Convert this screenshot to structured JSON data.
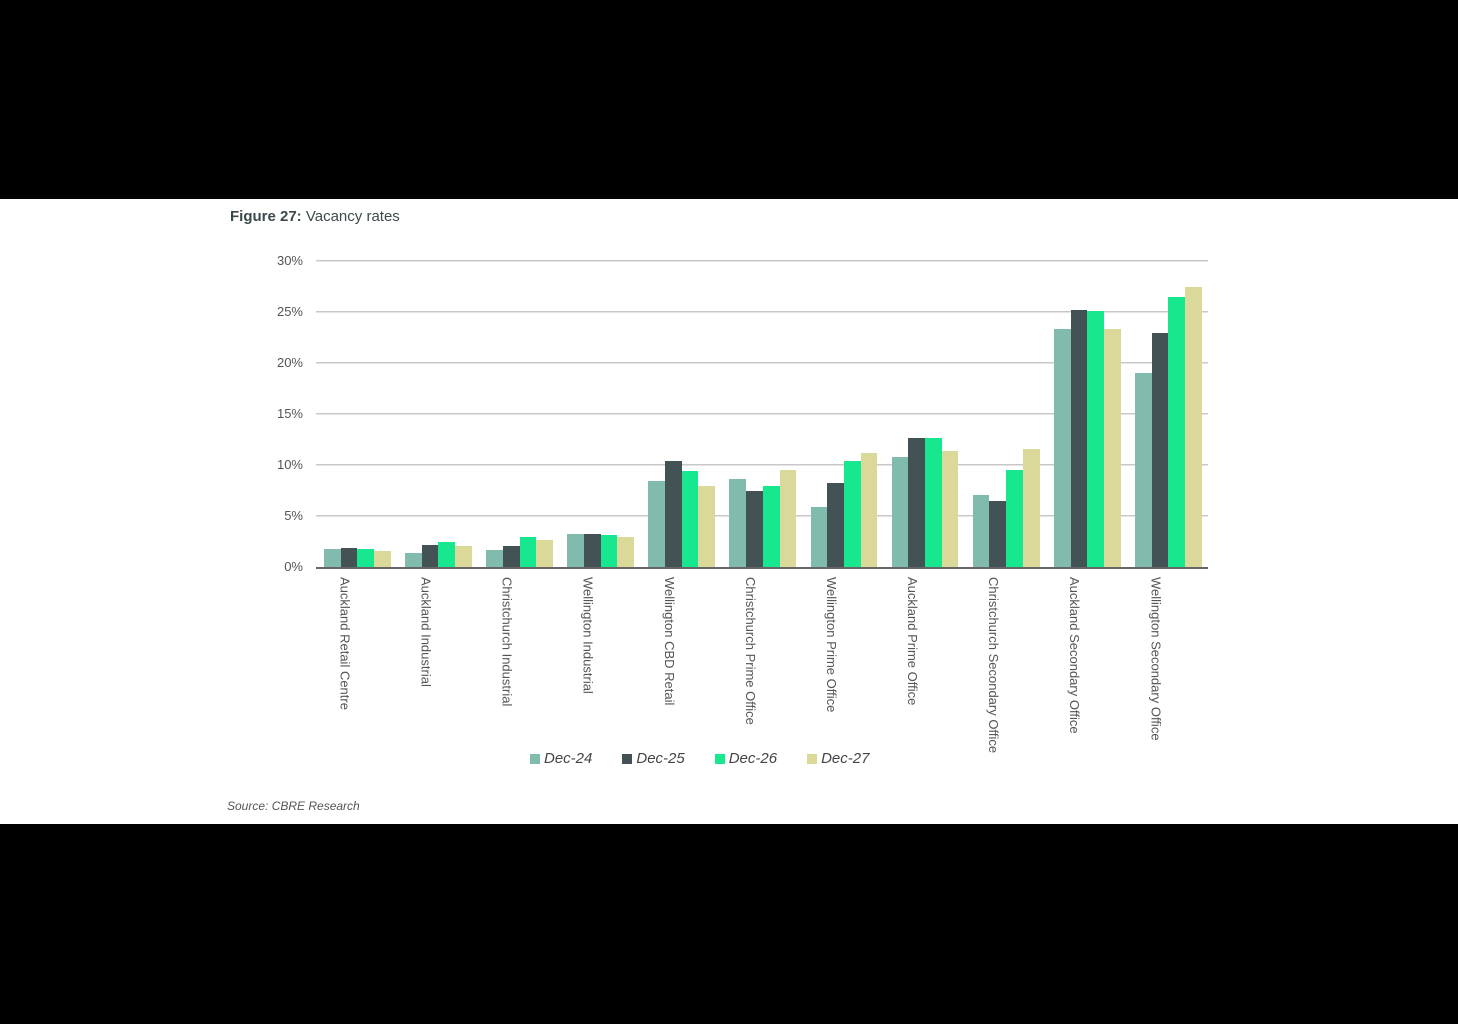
{
  "figure": {
    "label": "Figure 27:",
    "title": "Vacancy rates",
    "source": "Source: CBRE Research"
  },
  "chart_data": {
    "type": "bar",
    "title": "Vacancy rates",
    "xlabel": "",
    "ylabel": "",
    "ylim": [
      0,
      30
    ],
    "yticks": [
      "0%",
      "5%",
      "10%",
      "15%",
      "20%",
      "25%",
      "30%"
    ],
    "grid": true,
    "legend_position": "bottom",
    "categories": [
      "Auckland Retail Centre",
      "Auckland Industrial",
      "Christchurch Industrial",
      "Wellington Industrial",
      "Wellington CBD Retail",
      "Christchurch  Prime Office",
      "Wellington Prime Office",
      "Auckland Prime Office",
      "Christchurch Secondary Office",
      "Auckland Secondary Office",
      "Wellington Secondary Office"
    ],
    "series": [
      {
        "name": "Dec-24",
        "color": "#80bbad",
        "values": [
          1.8,
          1.4,
          1.7,
          3.2,
          8.4,
          8.6,
          5.9,
          10.8,
          7.1,
          23.3,
          19.0
        ]
      },
      {
        "name": "Dec-25",
        "color": "#435254",
        "values": [
          1.9,
          2.2,
          2.1,
          3.2,
          10.4,
          7.5,
          8.2,
          12.6,
          6.5,
          25.2,
          22.9
        ]
      },
      {
        "name": "Dec-26",
        "color": "#17e88f",
        "values": [
          1.8,
          2.5,
          2.9,
          3.1,
          9.4,
          7.9,
          10.4,
          12.6,
          9.5,
          25.1,
          26.5
        ]
      },
      {
        "name": "Dec-27",
        "color": "#dbd99a",
        "values": [
          1.6,
          2.1,
          2.6,
          2.9,
          7.9,
          9.5,
          11.2,
          11.4,
          11.6,
          23.3,
          27.5
        ]
      }
    ]
  }
}
